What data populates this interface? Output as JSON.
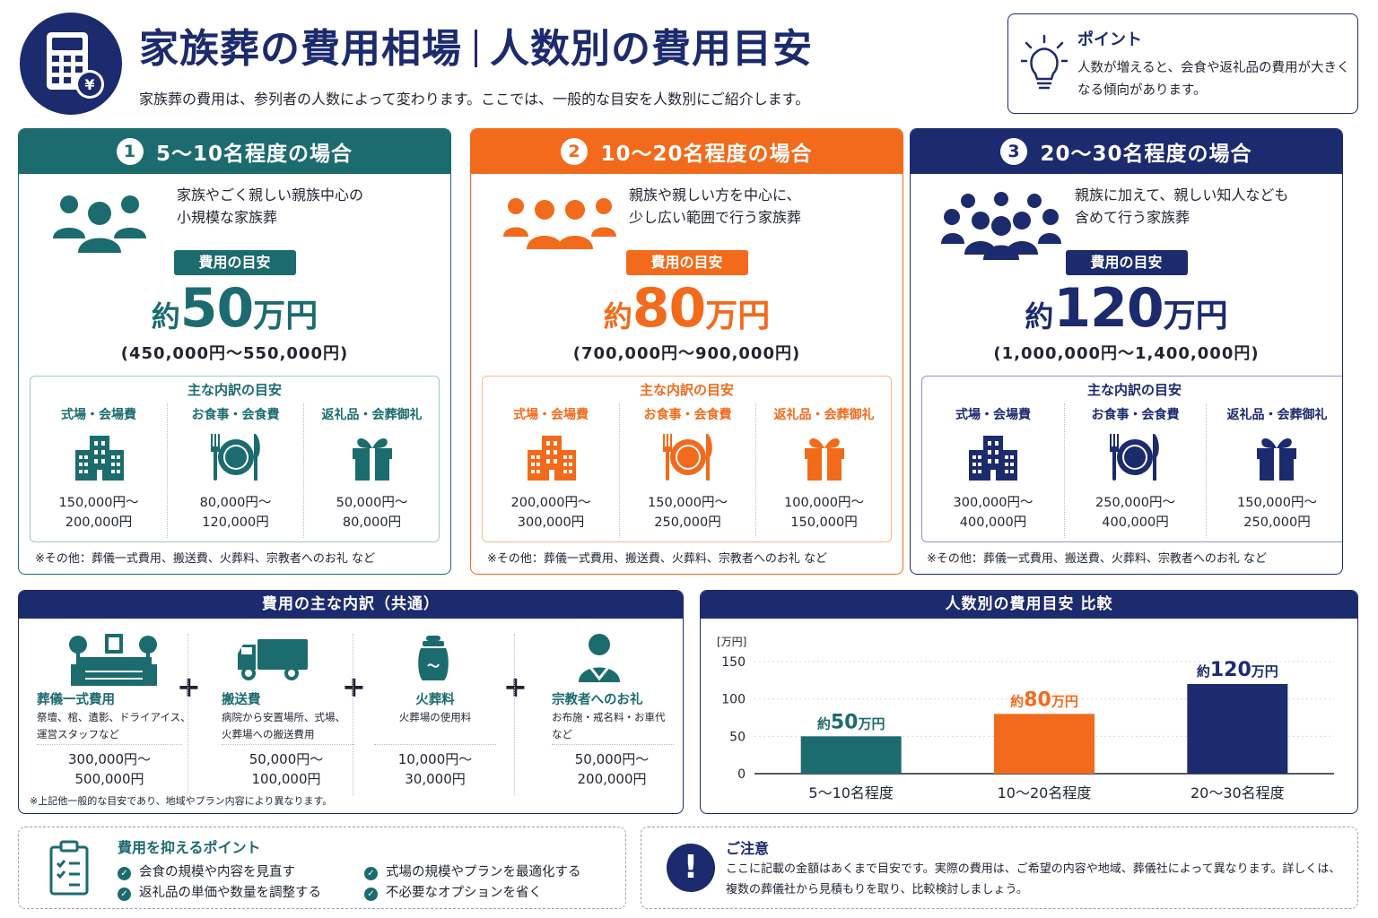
{
  "colors": {
    "teal": "#1c6b6e",
    "orange": "#f26a1b",
    "navy": "#1c2a6e",
    "teal_light": "#9ec6c7",
    "orange_light": "#f6b891",
    "navy_light": "#8d97c2"
  },
  "header": {
    "title_left": "家族葬の費用相場",
    "title_right": "人数別の費用目安",
    "subtitle": "家族葬の費用は、参列者の人数によって変わります。ここでは、一般的な目安を人数別にご紹介します。",
    "icon": "calculator-yen-icon"
  },
  "point": {
    "icon": "lightbulb-icon",
    "title": "ポイント",
    "text": "人数が増えると、会食や返礼品の費用が大きくなる傾向があります。"
  },
  "cards": [
    {
      "num": "1",
      "title": "5〜10名程度の場合",
      "desc1": "家族やごく親しい親族中心の",
      "desc2": "小規模な家族葬",
      "badge": "費用の目安",
      "price_prefix": "約",
      "price_num": "50",
      "price_unit": "万円",
      "range": "(450,000円〜550,000円)",
      "breakdown_title": "主な内訳の目安",
      "items": [
        {
          "label": "式場・会場費",
          "icon": "building-icon",
          "line1": "150,000円〜",
          "line2": "200,000円"
        },
        {
          "label": "お食事・会食費",
          "icon": "meal-plate-icon",
          "line1": "80,000円〜",
          "line2": "120,000円"
        },
        {
          "label": "返礼品・会葬御礼",
          "icon": "gift-icon",
          "line1": "50,000円〜",
          "line2": "80,000円"
        }
      ],
      "note": "※その他：葬儀一式費用、搬送費、火葬料、宗教者へのお礼 など"
    },
    {
      "num": "2",
      "title": "10〜20名程度の場合",
      "desc1": "親族や親しい方を中心に、",
      "desc2": "少し広い範囲で行う家族葬",
      "badge": "費用の目安",
      "price_prefix": "約",
      "price_num": "80",
      "price_unit": "万円",
      "range": "(700,000円〜900,000円)",
      "breakdown_title": "主な内訳の目安",
      "items": [
        {
          "label": "式場・会場費",
          "icon": "building-icon",
          "line1": "200,000円〜",
          "line2": "300,000円"
        },
        {
          "label": "お食事・会食費",
          "icon": "meal-plate-icon",
          "line1": "150,000円〜",
          "line2": "250,000円"
        },
        {
          "label": "返礼品・会葬御礼",
          "icon": "gift-icon",
          "line1": "100,000円〜",
          "line2": "150,000円"
        }
      ],
      "note": "※その他：葬儀一式費用、搬送費、火葬料、宗教者へのお礼 など"
    },
    {
      "num": "3",
      "title": "20〜30名程度の場合",
      "desc1": "親族に加えて、親しい知人なども",
      "desc2": "含めて行う家族葬",
      "badge": "費用の目安",
      "price_prefix": "約",
      "price_num": "120",
      "price_unit": "万円",
      "range": "(1,000,000円〜1,400,000円)",
      "breakdown_title": "主な内訳の目安",
      "items": [
        {
          "label": "式場・会場費",
          "icon": "building-icon",
          "line1": "300,000円〜",
          "line2": "400,000円"
        },
        {
          "label": "お食事・会食費",
          "icon": "meal-plate-icon",
          "line1": "250,000円〜",
          "line2": "400,000円"
        },
        {
          "label": "返礼品・会葬御礼",
          "icon": "gift-icon",
          "line1": "150,000円〜",
          "line2": "250,000円"
        }
      ],
      "note": "※その他：葬儀一式費用、搬送費、火葬料、宗教者へのお礼 など"
    }
  ],
  "common": {
    "title": "費用の主な内訳（共通）",
    "plus": "+",
    "items": [
      {
        "name": "葬儀一式費用",
        "icon": "altar-icon",
        "desc1": "祭壇、棺、遺影、ドライアイス、",
        "desc2": "運営スタッフなど",
        "line1": "300,000円〜",
        "line2": "500,000円"
      },
      {
        "name": "搬送費",
        "icon": "truck-icon",
        "desc1": "病院から安置場所、式場、",
        "desc2": "火葬場への搬送費用",
        "line1": "50,000円〜",
        "line2": "100,000円"
      },
      {
        "name": "火葬料",
        "icon": "urn-icon",
        "desc1": "火葬場の使用料",
        "desc2": "",
        "line1": "10,000円〜",
        "line2": "30,000円"
      },
      {
        "name": "宗教者へのお礼",
        "icon": "monk-icon",
        "desc1": "お布施・戒名料・お車代",
        "desc2": "など",
        "line1": "50,000円〜",
        "line2": "200,000円"
      }
    ],
    "note": "※上記他一般的な目安であり、地域やプラン内容により異なります。"
  },
  "chart_data": {
    "type": "bar",
    "title": "人数別の費用目安 比較",
    "ylabel": "[万円]",
    "ylim": [
      0,
      150
    ],
    "yticks": [
      0,
      50,
      100,
      150
    ],
    "categories": [
      "5〜10名程度",
      "10〜20名程度",
      "20〜30名程度"
    ],
    "values": [
      50,
      80,
      120
    ],
    "value_prefix": "約",
    "value_unit": "万円",
    "bar_colors": [
      "#1c6b6e",
      "#f26a1b",
      "#1c2a6e"
    ],
    "grid": true
  },
  "tips": {
    "icon": "clipboard-checklist-icon",
    "title": "費用を抑えるポイント",
    "items": [
      "会食の規模や内容を見直す",
      "式場の規模やプランを最適化する",
      "返礼品の単価や数量を調整する",
      "不必要なオプションを省く"
    ]
  },
  "notice": {
    "icon": "exclamation-icon",
    "mark": "!",
    "title": "ご注意",
    "text": "ここに記載の金額はあくまで目安です。実際の費用は、ご希望の内容や地域、葬儀社によって異なります。詳しくは、複数の葬儀社から見積もりを取り、比較検討しましょう。"
  }
}
